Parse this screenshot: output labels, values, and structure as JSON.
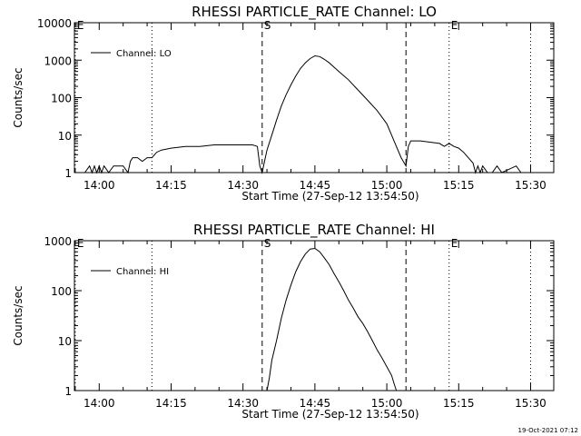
{
  "footer": {
    "date_stamp": "19-Oct-2021 07:12"
  },
  "chart_data": [
    {
      "type": "line",
      "title": "RHESSI PARTICLE_RATE Channel: LO",
      "xlabel": "Start Time (27-Sep-12 13:54:50)",
      "ylabel": "Counts/sec",
      "yscale": "log",
      "ylim": [
        1,
        10000
      ],
      "xlim": [
        "13:54:50",
        "15:34:50"
      ],
      "x_tick_labels": [
        "14:00",
        "14:15",
        "14:30",
        "14:45",
        "15:00",
        "15:15",
        "15:30"
      ],
      "y_tick_labels": [
        "1",
        "10",
        "100",
        "1000",
        "10000"
      ],
      "legend": {
        "position": "top-left",
        "entries": [
          "Channel: LO"
        ]
      },
      "markers": [
        {
          "label": "E",
          "time": "13:55",
          "style": "dotted"
        },
        {
          "label": "",
          "time": "14:11",
          "style": "dotted"
        },
        {
          "label": "S",
          "time": "14:34",
          "style": "dashed"
        },
        {
          "label": "",
          "time": "15:04",
          "style": "dashed"
        },
        {
          "label": "E",
          "time": "15:13",
          "style": "dotted"
        },
        {
          "label": "",
          "time": "15:30",
          "style": "dotted"
        }
      ],
      "series": [
        {
          "name": "Channel: LO",
          "points": [
            [
              "13:55:00",
              1.0
            ],
            [
              "13:57:00",
              1.0
            ],
            [
              "13:58:00",
              1.5
            ],
            [
              "13:58:30",
              1.0
            ],
            [
              "13:59:00",
              1.5
            ],
            [
              "13:59:30",
              1.0
            ],
            [
              "14:00:00",
              1.5
            ],
            [
              "14:00:30",
              1.0
            ],
            [
              "14:01:00",
              1.5
            ],
            [
              "14:02:00",
              1.0
            ],
            [
              "14:03:00",
              1.5
            ],
            [
              "14:05:00",
              1.5
            ],
            [
              "14:06:00",
              1.0
            ],
            [
              "14:06:30",
              2.0
            ],
            [
              "14:07:00",
              2.5
            ],
            [
              "14:08:00",
              2.5
            ],
            [
              "14:09:00",
              2.0
            ],
            [
              "14:10:00",
              2.5
            ],
            [
              "14:11:00",
              2.5
            ],
            [
              "14:12:00",
              3.5
            ],
            [
              "14:13:00",
              4.0
            ],
            [
              "14:15:00",
              4.5
            ],
            [
              "14:18:00",
              5.0
            ],
            [
              "14:21:00",
              5.0
            ],
            [
              "14:24:00",
              5.5
            ],
            [
              "14:27:00",
              5.5
            ],
            [
              "14:30:00",
              5.5
            ],
            [
              "14:32:00",
              5.5
            ],
            [
              "14:33:00",
              5.0
            ],
            [
              "14:33:30",
              1.5
            ],
            [
              "14:34:00",
              1.0
            ],
            [
              "14:34:30",
              2.0
            ],
            [
              "14:35:00",
              4.0
            ],
            [
              "14:36:00",
              10
            ],
            [
              "14:37:00",
              25
            ],
            [
              "14:38:00",
              60
            ],
            [
              "14:39:00",
              120
            ],
            [
              "14:40:00",
              220
            ],
            [
              "14:41:00",
              380
            ],
            [
              "14:42:00",
              600
            ],
            [
              "14:43:00",
              850
            ],
            [
              "14:44:00",
              1100
            ],
            [
              "14:45:00",
              1300
            ],
            [
              "14:46:00",
              1250
            ],
            [
              "14:47:00",
              1050
            ],
            [
              "14:48:00",
              850
            ],
            [
              "14:49:00",
              650
            ],
            [
              "14:50:00",
              500
            ],
            [
              "14:52:00",
              300
            ],
            [
              "14:54:00",
              160
            ],
            [
              "14:56:00",
              85
            ],
            [
              "14:58:00",
              45
            ],
            [
              "15:00:00",
              20
            ],
            [
              "15:01:00",
              10
            ],
            [
              "15:02:00",
              5
            ],
            [
              "15:03:00",
              2.5
            ],
            [
              "15:04:00",
              1.5
            ],
            [
              "15:04:30",
              5.0
            ],
            [
              "15:05:00",
              7.0
            ],
            [
              "15:07:00",
              7.0
            ],
            [
              "15:09:00",
              6.5
            ],
            [
              "15:11:00",
              6.0
            ],
            [
              "15:12:00",
              5.0
            ],
            [
              "15:13:00",
              6.0
            ],
            [
              "15:14:00",
              5.0
            ],
            [
              "15:15:00",
              4.5
            ],
            [
              "15:16:00",
              3.5
            ],
            [
              "15:17:00",
              2.5
            ],
            [
              "15:18:00",
              1.8
            ],
            [
              "15:18:30",
              1.0
            ],
            [
              "15:19:00",
              1.5
            ],
            [
              "15:19:30",
              1.0
            ],
            [
              "15:20:00",
              1.5
            ],
            [
              "15:21:00",
              1.0
            ],
            [
              "15:22:00",
              1.0
            ],
            [
              "15:23:00",
              1.5
            ],
            [
              "15:24:00",
              1.0
            ],
            [
              "15:27:00",
              1.5
            ],
            [
              "15:28:00",
              1.0
            ]
          ]
        }
      ]
    },
    {
      "type": "line",
      "title": "RHESSI PARTICLE_RATE Channel: HI",
      "xlabel": "Start Time (27-Sep-12 13:54:50)",
      "ylabel": "Counts/sec",
      "yscale": "log",
      "ylim": [
        1,
        1000
      ],
      "xlim": [
        "13:54:50",
        "15:34:50"
      ],
      "x_tick_labels": [
        "14:00",
        "14:15",
        "14:30",
        "14:45",
        "15:00",
        "15:15",
        "15:30"
      ],
      "y_tick_labels": [
        "1",
        "10",
        "100",
        "1000"
      ],
      "legend": {
        "position": "top-left",
        "entries": [
          "Channel: HI"
        ]
      },
      "markers": [
        {
          "label": "E",
          "time": "13:55",
          "style": "dotted"
        },
        {
          "label": "",
          "time": "14:11",
          "style": "dotted"
        },
        {
          "label": "S",
          "time": "14:34",
          "style": "dashed"
        },
        {
          "label": "",
          "time": "15:04",
          "style": "dashed"
        },
        {
          "label": "E",
          "time": "15:13",
          "style": "dotted"
        },
        {
          "label": "",
          "time": "15:30",
          "style": "dotted"
        }
      ],
      "series": [
        {
          "name": "Channel: HI",
          "points": [
            [
              "14:35:00",
              1.0
            ],
            [
              "14:35:30",
              1.8
            ],
            [
              "14:36:00",
              4.0
            ],
            [
              "14:37:00",
              10
            ],
            [
              "14:38:00",
              28
            ],
            [
              "14:39:00",
              65
            ],
            [
              "14:40:00",
              130
            ],
            [
              "14:41:00",
              240
            ],
            [
              "14:42:00",
              380
            ],
            [
              "14:43:00",
              540
            ],
            [
              "14:44:00",
              680
            ],
            [
              "14:45:00",
              700
            ],
            [
              "14:46:00",
              600
            ],
            [
              "14:47:00",
              450
            ],
            [
              "14:48:00",
              330
            ],
            [
              "14:49:00",
              220
            ],
            [
              "14:50:00",
              150
            ],
            [
              "14:51:00",
              100
            ],
            [
              "14:52:00",
              65
            ],
            [
              "14:53:00",
              45
            ],
            [
              "14:54:00",
              30
            ],
            [
              "14:55:00",
              22
            ],
            [
              "14:56:00",
              15
            ],
            [
              "14:57:00",
              10
            ],
            [
              "14:58:00",
              6.5
            ],
            [
              "14:59:00",
              4.5
            ],
            [
              "15:00:00",
              3.0
            ],
            [
              "15:01:00",
              2.0
            ],
            [
              "15:01:30",
              1.4
            ],
            [
              "15:02:00",
              1.0
            ]
          ]
        }
      ]
    }
  ]
}
